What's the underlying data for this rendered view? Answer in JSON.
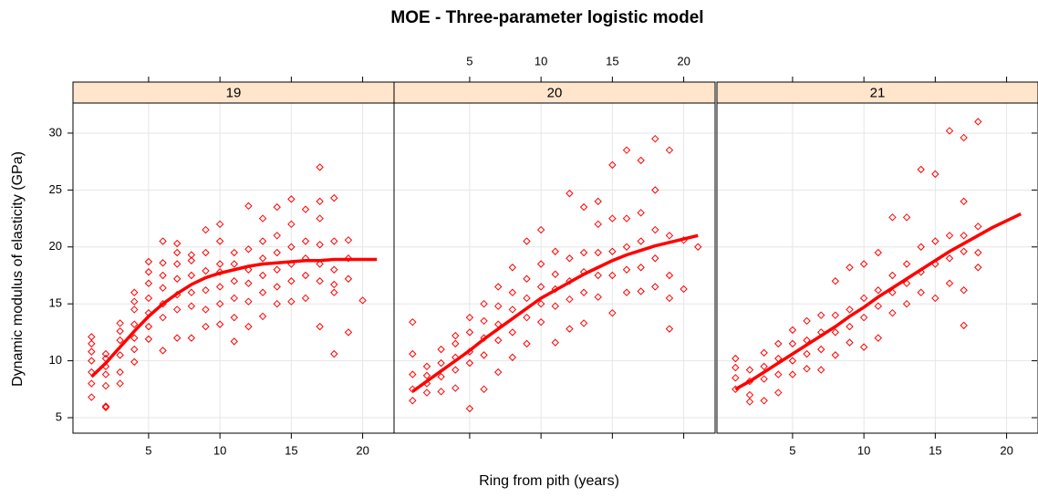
{
  "chart_data": {
    "type": "scatter",
    "title": "MOE - Three-parameter logistic model",
    "xlabel": "Ring from pith (years)",
    "ylabel": "Dynamic modulus of elasticity (GPa)",
    "xlim": [
      -0.3,
      22.2
    ],
    "ylim": [
      3.64,
      32.64
    ],
    "xticks": [
      5,
      10,
      15,
      20
    ],
    "yticks": [
      5,
      10,
      15,
      20,
      25,
      30
    ],
    "grid": true,
    "color": "#ff0000",
    "panels": [
      {
        "name": "19",
        "x": [
          1,
          1,
          1,
          1,
          1,
          1,
          1,
          2,
          2,
          2,
          2,
          2,
          2,
          2,
          3,
          3,
          3,
          3,
          3,
          3,
          4,
          4,
          4,
          4,
          4,
          4,
          4,
          5,
          5,
          5,
          5,
          5,
          5,
          5,
          6,
          6,
          6,
          6,
          6,
          6,
          6,
          7,
          7,
          7,
          7,
          7,
          7,
          7,
          8,
          8,
          8,
          8,
          8,
          8,
          9,
          9,
          9,
          9,
          9,
          9,
          10,
          10,
          10,
          10,
          10,
          10,
          10,
          11,
          11,
          11,
          11,
          11,
          11,
          12,
          12,
          12,
          12,
          12,
          12,
          13,
          13,
          13,
          13,
          13,
          13,
          14,
          14,
          14,
          14,
          14,
          14,
          15,
          15,
          15,
          15,
          15,
          15,
          16,
          16,
          16,
          16,
          16,
          17,
          17,
          17,
          17,
          17,
          17,
          17,
          18,
          18,
          18,
          18,
          18,
          18,
          19,
          19,
          19,
          19,
          20
        ],
        "y": [
          6.8,
          8.0,
          9.0,
          10.0,
          10.8,
          11.5,
          12.1,
          5.9,
          6.0,
          7.8,
          8.8,
          9.5,
          10.2,
          10.6,
          8.0,
          9.0,
          10.5,
          11.8,
          12.6,
          13.3,
          9.9,
          11.0,
          12.0,
          13.2,
          14.5,
          15.2,
          16.0,
          11.9,
          13.0,
          14.2,
          15.5,
          16.8,
          17.8,
          18.7,
          10.9,
          13.8,
          15.0,
          16.4,
          17.5,
          18.6,
          20.5,
          12.0,
          14.5,
          15.8,
          17.2,
          18.5,
          19.5,
          20.3,
          12.0,
          14.8,
          16.0,
          17.5,
          18.8,
          19.3,
          13.0,
          14.5,
          16.2,
          17.9,
          19.5,
          21.5,
          13.2,
          15.0,
          16.5,
          17.8,
          18.5,
          20.5,
          22.0,
          11.7,
          13.8,
          15.5,
          17.0,
          18.5,
          19.5,
          13.0,
          15.2,
          16.8,
          18.0,
          19.8,
          23.6,
          13.9,
          16.0,
          17.5,
          19.0,
          20.5,
          22.5,
          15.0,
          16.5,
          18.0,
          19.5,
          21.0,
          23.5,
          15.2,
          17.0,
          18.5,
          20.0,
          22.0,
          24.2,
          15.5,
          17.5,
          19.0,
          20.5,
          23.3,
          13.0,
          17.0,
          18.5,
          20.2,
          22.5,
          24.0,
          27.0,
          10.6,
          16.0,
          16.7,
          18.0,
          20.5,
          24.3,
          12.5,
          17.2,
          19.0,
          20.6,
          15.3
        ],
        "fit_x": [
          1,
          2,
          3,
          4,
          5,
          6,
          7,
          8,
          9,
          10,
          11,
          12,
          13,
          14,
          15,
          16,
          17,
          18,
          19,
          20,
          21
        ],
        "fit_y": [
          8.6,
          9.8,
          11.2,
          12.6,
          13.9,
          15.0,
          15.9,
          16.7,
          17.3,
          17.7,
          18.0,
          18.3,
          18.5,
          18.6,
          18.7,
          18.8,
          18.8,
          18.9,
          18.9,
          18.9,
          18.9
        ]
      },
      {
        "name": "20",
        "x": [
          1,
          1,
          1,
          1,
          1,
          2,
          2,
          2,
          2,
          3,
          3,
          3,
          3,
          4,
          4,
          4,
          4,
          4,
          5,
          5,
          5,
          5,
          5,
          6,
          6,
          6,
          6,
          6,
          7,
          7,
          7,
          7,
          7,
          8,
          8,
          8,
          8,
          8,
          9,
          9,
          9,
          9,
          9,
          10,
          10,
          10,
          10,
          10,
          11,
          11,
          11,
          11,
          11,
          12,
          12,
          12,
          12,
          12,
          13,
          13,
          13,
          13,
          13,
          14,
          14,
          14,
          14,
          14,
          15,
          15,
          15,
          15,
          15,
          16,
          16,
          16,
          16,
          16,
          17,
          17,
          17,
          17,
          17,
          18,
          18,
          18,
          18,
          18,
          19,
          19,
          19,
          19,
          19,
          20,
          20,
          21
        ],
        "y": [
          6.5,
          7.5,
          8.8,
          10.6,
          13.4,
          7.2,
          8.0,
          8.7,
          9.5,
          7.3,
          8.6,
          9.8,
          11.0,
          7.6,
          9.2,
          10.3,
          11.5,
          12.2,
          5.8,
          9.8,
          10.8,
          12.5,
          13.8,
          7.5,
          10.5,
          12.0,
          13.5,
          15.0,
          9.0,
          11.8,
          13.2,
          14.8,
          16.5,
          10.3,
          12.5,
          14.5,
          16.0,
          18.2,
          11.5,
          13.8,
          15.5,
          17.2,
          20.5,
          13.4,
          15.0,
          16.5,
          18.5,
          21.5,
          11.6,
          14.8,
          16.3,
          17.6,
          19.6,
          12.8,
          15.4,
          17.0,
          19.0,
          24.7,
          13.3,
          16.0,
          17.8,
          19.5,
          23.5,
          15.6,
          17.5,
          19.5,
          22.0,
          24.0,
          14.2,
          17.5,
          19.6,
          22.5,
          27.2,
          16.0,
          18.0,
          20.0,
          22.5,
          28.5,
          16.1,
          18.2,
          20.5,
          23.0,
          27.6,
          16.5,
          19.0,
          21.5,
          25.0,
          29.5,
          12.8,
          15.5,
          17.5,
          21.0,
          28.5,
          16.3,
          20.6,
          20.0
        ],
        "fit_x": [
          1,
          2,
          3,
          4,
          5,
          6,
          7,
          8,
          9,
          10,
          11,
          12,
          13,
          14,
          15,
          16,
          17,
          18,
          19,
          20,
          21
        ],
        "fit_y": [
          7.3,
          8.2,
          9.1,
          10.0,
          10.9,
          11.9,
          12.8,
          13.7,
          14.6,
          15.5,
          16.2,
          16.9,
          17.6,
          18.2,
          18.8,
          19.3,
          19.7,
          20.1,
          20.4,
          20.7,
          21.0
        ]
      },
      {
        "name": "21",
        "x": [
          1,
          1,
          1,
          1,
          2,
          2,
          2,
          2,
          3,
          3,
          3,
          3,
          4,
          4,
          4,
          4,
          5,
          5,
          5,
          5,
          6,
          6,
          6,
          6,
          7,
          7,
          7,
          7,
          8,
          8,
          8,
          8,
          9,
          9,
          9,
          9,
          10,
          10,
          10,
          10,
          11,
          11,
          11,
          11,
          12,
          12,
          12,
          12,
          13,
          13,
          13,
          13,
          14,
          14,
          14,
          14,
          15,
          15,
          15,
          15,
          16,
          16,
          16,
          16,
          17,
          17,
          17,
          17,
          17,
          17,
          18,
          18,
          18,
          18
        ],
        "y": [
          7.5,
          8.5,
          9.4,
          10.2,
          6.4,
          7.0,
          8.2,
          9.2,
          6.5,
          8.4,
          9.5,
          10.7,
          7.2,
          8.8,
          10.2,
          11.5,
          8.8,
          10.0,
          11.5,
          12.7,
          9.3,
          10.6,
          11.8,
          13.5,
          9.2,
          11.0,
          12.5,
          14.0,
          10.5,
          12.5,
          14.0,
          17.0,
          11.6,
          13.0,
          14.5,
          18.2,
          11.2,
          13.8,
          15.5,
          18.5,
          12.0,
          14.8,
          16.2,
          19.5,
          14.2,
          16.0,
          17.5,
          22.6,
          15.0,
          16.8,
          18.5,
          22.6,
          16.0,
          17.8,
          20.0,
          26.8,
          15.5,
          18.5,
          20.5,
          26.4,
          16.8,
          19.0,
          21.0,
          30.2,
          13.1,
          16.2,
          19.6,
          21.0,
          24.0,
          29.6,
          18.2,
          19.5,
          21.8,
          31.0
        ],
        "fit_x": [
          1,
          2,
          3,
          4,
          5,
          6,
          7,
          8,
          9,
          10,
          11,
          12,
          13,
          14,
          15,
          16,
          17,
          18,
          19,
          20,
          21
        ],
        "fit_y": [
          7.5,
          8.2,
          9.0,
          9.8,
          10.6,
          11.4,
          12.2,
          13.0,
          13.9,
          14.7,
          15.6,
          16.4,
          17.2,
          18.0,
          18.8,
          19.6,
          20.3,
          21.0,
          21.7,
          22.3,
          22.9
        ]
      }
    ]
  }
}
